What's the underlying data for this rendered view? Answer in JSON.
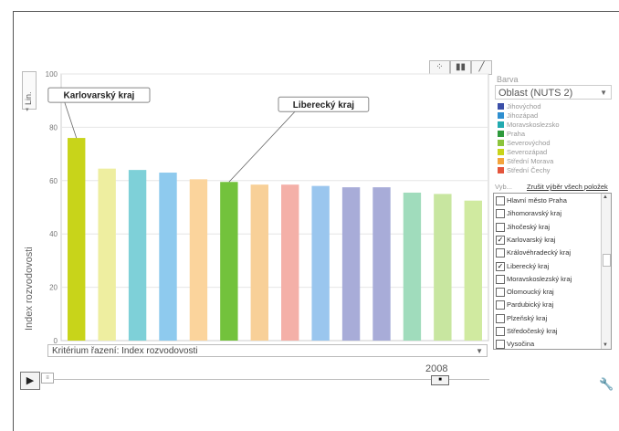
{
  "chart_data": {
    "type": "bar",
    "ylabel": "Index rozvodovosti",
    "ylim": [
      0,
      100
    ],
    "yticks": [
      0,
      20,
      40,
      60,
      80,
      100
    ],
    "values": [
      76,
      64.5,
      64,
      63,
      60.5,
      59.5,
      58.5,
      58.5,
      58,
      57.5,
      57.5,
      55.5,
      55,
      52.5
    ],
    "bar_colors": [
      "#c8d41a",
      "#eeeea0",
      "#7ed0d8",
      "#8ecaee",
      "#fbd49c",
      "#73c23c",
      "#f8d098",
      "#f4b0a8",
      "#9ac6ee",
      "#a8acd8",
      "#a8acd8",
      "#a0dcbc",
      "#c8e6a0",
      "#d0eaa0"
    ],
    "annotations": [
      {
        "text": "Karlovarský kraj",
        "bar_index": 0
      },
      {
        "text": "Liberecký kraj",
        "bar_index": 5
      }
    ]
  },
  "controls": {
    "scale_button": "Lin.",
    "legend_heading": "Barva",
    "color_select": "Oblast (NUTS 2)",
    "select_hint": "Vyb...",
    "clear_selection": "Zrušit výběr všech položek",
    "sort_criterion": "Kritérium řazení: Index rozvodovosti",
    "year": "2008"
  },
  "legend": [
    {
      "label": "Jihovýchod",
      "color": "#3b4fa8"
    },
    {
      "label": "Jihozápad",
      "color": "#2f8fd0"
    },
    {
      "label": "Moravskoslezsko",
      "color": "#22aab0"
    },
    {
      "label": "Praha",
      "color": "#2e9a3c"
    },
    {
      "label": "Severovýchod",
      "color": "#8cc43c"
    },
    {
      "label": "Severozápad",
      "color": "#c8d41a"
    },
    {
      "label": "Střední Morava",
      "color": "#f3a43c"
    },
    {
      "label": "Střední Čechy",
      "color": "#e4553c"
    }
  ],
  "regions": [
    {
      "label": "Hlavní město Praha",
      "checked": false
    },
    {
      "label": "Jihomoravský kraj",
      "checked": false
    },
    {
      "label": "Jihočeský kraj",
      "checked": false
    },
    {
      "label": "Karlovarský kraj",
      "checked": true
    },
    {
      "label": "Královéhradecký kraj",
      "checked": false
    },
    {
      "label": "Liberecký kraj",
      "checked": true
    },
    {
      "label": "Moravskoslezský kraj",
      "checked": false
    },
    {
      "label": "Olomoucký kraj",
      "checked": false
    },
    {
      "label": "Pardubický kraj",
      "checked": false
    },
    {
      "label": "Plzeňský kraj",
      "checked": false
    },
    {
      "label": "Středočeský kraj",
      "checked": false
    },
    {
      "label": "Vysočina",
      "checked": false
    }
  ]
}
